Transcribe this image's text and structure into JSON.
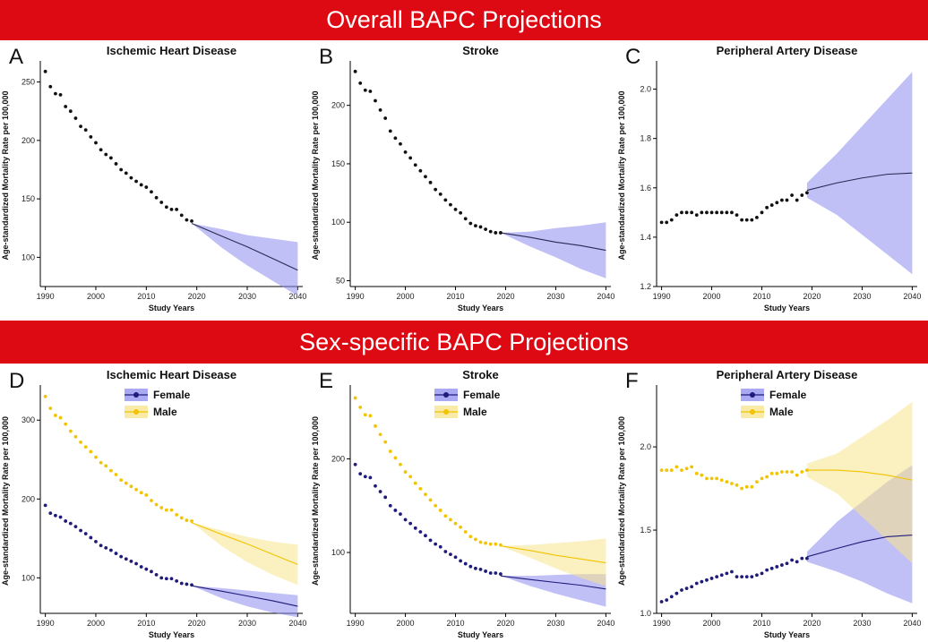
{
  "banners": {
    "overall": "Overall BAPC Projections",
    "sex_specific": "Sex-specific BAPC Projections"
  },
  "colors": {
    "banner": "#dd0a14",
    "observed_overall": "#111111",
    "female": "#1f1b7a",
    "female_band": "#8c8cf0",
    "male": "#f2c400",
    "male_band": "#f7e38a"
  },
  "chart_data": [
    {
      "panel": "A",
      "type": "scatter",
      "title": "Ischemic Heart Disease",
      "xlabel": "Study Years",
      "ylabel": "Age-standardized Mortality Rate per 100,000",
      "xlim": [
        1989,
        2041
      ],
      "ylim": [
        75,
        265
      ],
      "xticks": [
        1990,
        2000,
        2010,
        2020,
        2030,
        2040
      ],
      "yticks": [
        100,
        150,
        200,
        250
      ],
      "series": [
        {
          "name": "Overall",
          "observed_years": [
            1990,
            1991,
            1992,
            1993,
            1994,
            1995,
            1996,
            1997,
            1998,
            1999,
            2000,
            2001,
            2002,
            2003,
            2004,
            2005,
            2006,
            2007,
            2008,
            2009,
            2010,
            2011,
            2012,
            2013,
            2014,
            2015,
            2016,
            2017,
            2018,
            2019
          ],
          "observed": [
            259,
            246,
            240,
            239,
            229,
            225,
            219,
            212,
            209,
            203,
            198,
            192,
            188,
            185,
            180,
            175,
            172,
            168,
            165,
            162,
            160,
            156,
            151,
            147,
            143,
            141,
            141,
            136,
            132,
            131
          ],
          "projection_years": [
            2019,
            2025,
            2030,
            2035,
            2040
          ],
          "projection": [
            129,
            118,
            109,
            99,
            89
          ],
          "lower": [
            129,
            108,
            93,
            80,
            67
          ],
          "upper": [
            129,
            124,
            119,
            116,
            113
          ]
        }
      ]
    },
    {
      "panel": "B",
      "type": "scatter",
      "title": "Stroke",
      "xlabel": "Study Years",
      "ylabel": "Age-standardized Mortality Rate per 100,000",
      "xlim": [
        1989,
        2041
      ],
      "ylim": [
        45,
        235
      ],
      "xticks": [
        1990,
        2000,
        2010,
        2020,
        2030,
        2040
      ],
      "yticks": [
        50,
        100,
        150,
        200
      ],
      "series": [
        {
          "name": "Overall",
          "observed_years": [
            1990,
            1991,
            1992,
            1993,
            1994,
            1995,
            1996,
            1997,
            1998,
            1999,
            2000,
            2001,
            2002,
            2003,
            2004,
            2005,
            2006,
            2007,
            2008,
            2009,
            2010,
            2011,
            2012,
            2013,
            2014,
            2015,
            2016,
            2017,
            2018,
            2019
          ],
          "observed": [
            229,
            219,
            213,
            212,
            204,
            196,
            189,
            178,
            172,
            167,
            160,
            155,
            149,
            144,
            139,
            134,
            128,
            124,
            119,
            115,
            111,
            108,
            103,
            99,
            97,
            96,
            94,
            92,
            91,
            91
          ],
          "projection_years": [
            2019,
            2025,
            2030,
            2035,
            2040
          ],
          "projection": [
            91,
            87,
            83,
            80,
            76
          ],
          "lower": [
            91,
            79,
            70,
            60,
            52
          ],
          "upper": [
            91,
            92,
            95,
            97,
            100
          ]
        }
      ]
    },
    {
      "panel": "C",
      "type": "scatter",
      "title": "Peripheral Artery Disease",
      "xlabel": "Study Years",
      "ylabel": "Age-standardized Mortality Rate per 100,000",
      "xlim": [
        1989,
        2041
      ],
      "ylim": [
        1.2,
        2.1
      ],
      "xticks": [
        1990,
        2000,
        2010,
        2020,
        2030,
        2040
      ],
      "yticks": [
        1.2,
        1.4,
        1.6,
        1.8,
        2.0
      ],
      "series": [
        {
          "name": "Overall",
          "observed_years": [
            1990,
            1991,
            1992,
            1993,
            1994,
            1995,
            1996,
            1997,
            1998,
            1999,
            2000,
            2001,
            2002,
            2003,
            2004,
            2005,
            2006,
            2007,
            2008,
            2009,
            2010,
            2011,
            2012,
            2013,
            2014,
            2015,
            2016,
            2017,
            2018,
            2019
          ],
          "observed": [
            1.46,
            1.46,
            1.47,
            1.49,
            1.5,
            1.5,
            1.5,
            1.49,
            1.5,
            1.5,
            1.5,
            1.5,
            1.5,
            1.5,
            1.5,
            1.49,
            1.47,
            1.47,
            1.47,
            1.48,
            1.5,
            1.52,
            1.53,
            1.54,
            1.55,
            1.55,
            1.57,
            1.55,
            1.57,
            1.58
          ],
          "projection_years": [
            2019,
            2025,
            2030,
            2035,
            2040
          ],
          "projection": [
            1.59,
            1.62,
            1.64,
            1.655,
            1.66
          ],
          "lower": [
            1.56,
            1.49,
            1.41,
            1.33,
            1.25
          ],
          "upper": [
            1.62,
            1.74,
            1.85,
            1.96,
            2.07
          ]
        }
      ]
    },
    {
      "panel": "D",
      "type": "scatter",
      "title": "Ischemic Heart Disease",
      "xlabel": "Study Years",
      "ylabel": "Age-standardized Mortality Rate per 100,000",
      "xlim": [
        1989,
        2041
      ],
      "ylim": [
        55,
        340
      ],
      "xticks": [
        1990,
        2000,
        2010,
        2020,
        2030,
        2040
      ],
      "yticks": [
        100,
        200,
        300
      ],
      "legend": [
        "Female",
        "Male"
      ],
      "legend_position": "top-center",
      "series": [
        {
          "name": "Female",
          "observed_years": [
            1990,
            1991,
            1992,
            1993,
            1994,
            1995,
            1996,
            1997,
            1998,
            1999,
            2000,
            2001,
            2002,
            2003,
            2004,
            2005,
            2006,
            2007,
            2008,
            2009,
            2010,
            2011,
            2012,
            2013,
            2014,
            2015,
            2016,
            2017,
            2018,
            2019
          ],
          "observed": [
            192,
            182,
            179,
            177,
            172,
            169,
            165,
            160,
            156,
            151,
            146,
            141,
            138,
            135,
            131,
            127,
            124,
            121,
            118,
            114,
            111,
            108,
            104,
            100,
            99,
            99,
            96,
            93,
            92,
            91
          ],
          "projection_years": [
            2019,
            2025,
            2030,
            2035,
            2040
          ],
          "projection": [
            90,
            83,
            77,
            71,
            64
          ],
          "lower": [
            90,
            74,
            64,
            56,
            50
          ],
          "upper": [
            90,
            87,
            84,
            81,
            78
          ]
        },
        {
          "name": "Male",
          "observed_years": [
            1990,
            1991,
            1992,
            1993,
            1994,
            1995,
            1996,
            1997,
            1998,
            1999,
            2000,
            2001,
            2002,
            2003,
            2004,
            2005,
            2006,
            2007,
            2008,
            2009,
            2010,
            2011,
            2012,
            2013,
            2014,
            2015,
            2016,
            2017,
            2018,
            2019
          ],
          "observed": [
            330,
            315,
            306,
            303,
            295,
            286,
            279,
            272,
            266,
            260,
            253,
            246,
            242,
            236,
            231,
            224,
            220,
            216,
            212,
            208,
            205,
            198,
            193,
            189,
            186,
            186,
            180,
            176,
            173,
            172
          ],
          "projection_years": [
            2019,
            2025,
            2030,
            2035,
            2040
          ],
          "projection": [
            170,
            155,
            143,
            130,
            117
          ],
          "lower": [
            170,
            140,
            120,
            104,
            91
          ],
          "upper": [
            170,
            160,
            152,
            146,
            142
          ]
        }
      ]
    },
    {
      "panel": "E",
      "type": "scatter",
      "title": "Stroke",
      "xlabel": "Study Years",
      "ylabel": "Age-standardized Mortality Rate per 100,000",
      "xlim": [
        1989,
        2041
      ],
      "ylim": [
        35,
        275
      ],
      "xticks": [
        1990,
        2000,
        2010,
        2020,
        2030,
        2040
      ],
      "yticks": [
        100,
        200
      ],
      "legend": [
        "Female",
        "Male"
      ],
      "legend_position": "top-center",
      "series": [
        {
          "name": "Female",
          "observed_years": [
            1990,
            1991,
            1992,
            1993,
            1994,
            1995,
            1996,
            1997,
            1998,
            1999,
            2000,
            2001,
            2002,
            2003,
            2004,
            2005,
            2006,
            2007,
            2008,
            2009,
            2010,
            2011,
            2012,
            2013,
            2014,
            2015,
            2016,
            2017,
            2018,
            2019
          ],
          "observed": [
            194,
            184,
            181,
            180,
            171,
            165,
            159,
            150,
            145,
            141,
            135,
            131,
            126,
            122,
            118,
            113,
            109,
            106,
            101,
            98,
            95,
            91,
            88,
            85,
            83,
            82,
            80,
            78,
            78,
            77
          ],
          "projection_years": [
            2019,
            2025,
            2030,
            2035,
            2040
          ],
          "projection": [
            75,
            71,
            68,
            65,
            61
          ],
          "lower": [
            75,
            64,
            56,
            49,
            42
          ],
          "upper": [
            75,
            75,
            76,
            77,
            77
          ]
        },
        {
          "name": "Male",
          "observed_years": [
            1990,
            1991,
            1992,
            1993,
            1994,
            1995,
            1996,
            1997,
            1998,
            1999,
            2000,
            2001,
            2002,
            2003,
            2004,
            2005,
            2006,
            2007,
            2008,
            2009,
            2010,
            2011,
            2012,
            2013,
            2014,
            2015,
            2016,
            2017,
            2018,
            2019
          ],
          "observed": [
            265,
            255,
            247,
            246,
            235,
            226,
            218,
            208,
            201,
            194,
            186,
            181,
            174,
            168,
            162,
            156,
            150,
            145,
            139,
            135,
            131,
            127,
            122,
            117,
            114,
            111,
            110,
            109,
            109,
            108
          ],
          "projection_years": [
            2019,
            2025,
            2030,
            2035,
            2040
          ],
          "projection": [
            107,
            102,
            97,
            93,
            89
          ],
          "lower": [
            107,
            94,
            83,
            73,
            64
          ],
          "upper": [
            107,
            108,
            110,
            112,
            115
          ]
        }
      ]
    },
    {
      "panel": "F",
      "type": "scatter",
      "title": "Peripheral Artery Disease",
      "xlabel": "Study Years",
      "ylabel": "Age-standardized Mortality Rate per 100,000",
      "xlim": [
        1989,
        2041
      ],
      "ylim": [
        1.0,
        2.35
      ],
      "xticks": [
        1990,
        2000,
        2010,
        2020,
        2030,
        2040
      ],
      "yticks": [
        1.0,
        1.5,
        2.0
      ],
      "legend": [
        "Female",
        "Male"
      ],
      "legend_position": "top-center",
      "series": [
        {
          "name": "Female",
          "observed_years": [
            1990,
            1991,
            1992,
            1993,
            1994,
            1995,
            1996,
            1997,
            1998,
            1999,
            2000,
            2001,
            2002,
            2003,
            2004,
            2005,
            2006,
            2007,
            2008,
            2009,
            2010,
            2011,
            2012,
            2013,
            2014,
            2015,
            2016,
            2017,
            2018,
            2019
          ],
          "observed": [
            1.07,
            1.08,
            1.1,
            1.12,
            1.14,
            1.15,
            1.16,
            1.18,
            1.19,
            1.2,
            1.21,
            1.22,
            1.23,
            1.24,
            1.25,
            1.22,
            1.22,
            1.22,
            1.22,
            1.23,
            1.24,
            1.26,
            1.27,
            1.28,
            1.29,
            1.3,
            1.32,
            1.31,
            1.33,
            1.33
          ],
          "projection_years": [
            2019,
            2025,
            2030,
            2035,
            2040
          ],
          "projection": [
            1.34,
            1.39,
            1.43,
            1.46,
            1.47
          ],
          "lower": [
            1.31,
            1.25,
            1.19,
            1.12,
            1.06
          ],
          "upper": [
            1.37,
            1.55,
            1.67,
            1.79,
            1.89
          ]
        },
        {
          "name": "Male",
          "observed_years": [
            1990,
            1991,
            1992,
            1993,
            1994,
            1995,
            1996,
            1997,
            1998,
            1999,
            2000,
            2001,
            2002,
            2003,
            2004,
            2005,
            2006,
            2007,
            2008,
            2009,
            2010,
            2011,
            2012,
            2013,
            2014,
            2015,
            2016,
            2017,
            2018,
            2019
          ],
          "observed": [
            1.86,
            1.86,
            1.86,
            1.88,
            1.86,
            1.87,
            1.88,
            1.84,
            1.83,
            1.81,
            1.81,
            1.81,
            1.8,
            1.79,
            1.78,
            1.77,
            1.75,
            1.76,
            1.76,
            1.79,
            1.81,
            1.82,
            1.84,
            1.84,
            1.85,
            1.85,
            1.85,
            1.83,
            1.85,
            1.86
          ],
          "projection_years": [
            2019,
            2025,
            2030,
            2035,
            2040
          ],
          "projection": [
            1.86,
            1.86,
            1.85,
            1.83,
            1.8
          ],
          "lower": [
            1.82,
            1.72,
            1.58,
            1.44,
            1.3
          ],
          "upper": [
            1.9,
            1.96,
            2.06,
            2.16,
            2.27
          ]
        }
      ]
    }
  ]
}
